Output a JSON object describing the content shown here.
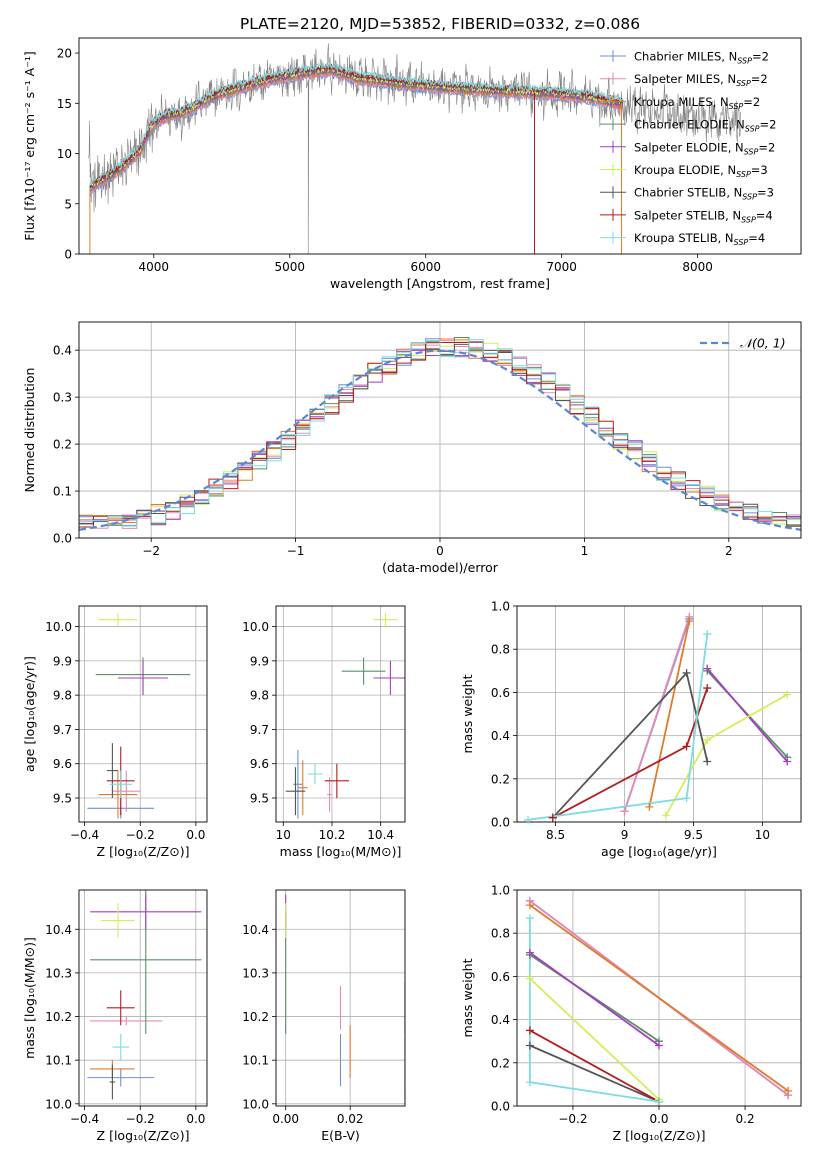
{
  "figure_title": "PLATE=2120, MJD=53852, FIBERID=0332, z=0.086",
  "series_styles": [
    {
      "key": "chab_miles",
      "color": "#6f8fd6"
    },
    {
      "key": "salp_miles",
      "color": "#e68ab8"
    },
    {
      "key": "krou_miles",
      "color": "#e07b2c"
    },
    {
      "key": "chab_elodie",
      "color": "#5a8f6a"
    },
    {
      "key": "salp_elodie",
      "color": "#a43fbf"
    },
    {
      "key": "krou_elodie",
      "color": "#d7ec5a"
    },
    {
      "key": "chab_stelib",
      "color": "#555555"
    },
    {
      "key": "salp_stelib",
      "color": "#b21c1c"
    },
    {
      "key": "krou_stelib",
      "color": "#7fdbe0"
    }
  ],
  "data_color": "#808080",
  "chart_data": [
    {
      "id": "spectrum",
      "type": "line",
      "xlabel": "wavelength [Angstrom, rest frame]",
      "ylabel": "Flux [fλ10⁻¹⁷ erg cm⁻² s⁻¹ A⁻¹]",
      "xlim": [
        3450,
        8760
      ],
      "ylim": [
        0,
        21.5
      ],
      "xticks": [
        4000,
        5000,
        6000,
        7000,
        8000
      ],
      "yticks": [
        0,
        5,
        10,
        15,
        20
      ],
      "grid": false,
      "legend": "top-right",
      "legend_entries": [
        {
          "key": "chab_miles",
          "label": "Chabrier MILES, N",
          "sub": "SSP",
          "suffix": "=2"
        },
        {
          "key": "salp_miles",
          "label": "Salpeter MILES, N",
          "sub": "SSP",
          "suffix": "=2"
        },
        {
          "key": "krou_miles",
          "label": "Kroupa MILES, N",
          "sub": "SSP",
          "suffix": "=2"
        },
        {
          "key": "chab_elodie",
          "label": "Chabrier ELODIE, N",
          "sub": "SSP",
          "suffix": "=2"
        },
        {
          "key": "salp_elodie",
          "label": "Salpeter ELODIE, N",
          "sub": "SSP",
          "suffix": "=2"
        },
        {
          "key": "krou_elodie",
          "label": "Kroupa ELODIE, N",
          "sub": "SSP",
          "suffix": "=3"
        },
        {
          "key": "chab_stelib",
          "label": "Chabrier STELIB, N",
          "sub": "SSP",
          "suffix": "=3"
        },
        {
          "key": "salp_stelib",
          "label": "Salpeter STELIB, N",
          "sub": "SSP",
          "suffix": "=4"
        },
        {
          "key": "krou_stelib",
          "label": "Kroupa STELIB, N",
          "sub": "SSP",
          "suffix": "=4"
        }
      ],
      "continuum": [
        [
          3530,
          6.5
        ],
        [
          3600,
          7.2
        ],
        [
          3700,
          8.0
        ],
        [
          3800,
          9.0
        ],
        [
          3900,
          10.3
        ],
        [
          3960,
          12.0
        ],
        [
          4000,
          13.0
        ],
        [
          4100,
          13.8
        ],
        [
          4200,
          14.0
        ],
        [
          4300,
          14.6
        ],
        [
          4400,
          15.4
        ],
        [
          4500,
          16.0
        ],
        [
          4700,
          16.8
        ],
        [
          4900,
          17.5
        ],
        [
          5100,
          18.0
        ],
        [
          5300,
          18.3
        ],
        [
          5500,
          17.5
        ],
        [
          5800,
          17.0
        ],
        [
          6000,
          16.7
        ],
        [
          6300,
          16.4
        ],
        [
          6600,
          16.2
        ],
        [
          6900,
          16.0
        ],
        [
          7200,
          15.6
        ],
        [
          7400,
          15.0
        ],
        [
          7600,
          14.6
        ],
        [
          7800,
          14.3
        ],
        [
          8000,
          13.6
        ],
        [
          8200,
          13.3
        ],
        [
          8300,
          13.1
        ]
      ],
      "model_range": [
        3530,
        7450
      ],
      "data_range": [
        3520,
        8320
      ],
      "model_drop_edges": {
        "krou_miles": [
          [
            3530,
            0
          ],
          [
            7440,
            0
          ]
        ],
        "salp_stelib": [
          [
            6800,
            0
          ]
        ]
      },
      "data_spikes": [
        [
          5135,
          0
        ],
        [
          3860,
          0.5
        ],
        [
          3895,
          1.5
        ]
      ]
    },
    {
      "id": "residuals",
      "type": "step",
      "xlabel": "(data-model)/error",
      "ylabel": "Normed distribution",
      "xlim": [
        -2.5,
        2.5
      ],
      "ylim": [
        0,
        0.46
      ],
      "xticks": [
        -2,
        -1,
        0,
        1,
        2
      ],
      "xtick_labels": [
        "−2",
        "−1",
        "0",
        "1",
        "2"
      ],
      "yticks": [
        0.0,
        0.1,
        0.2,
        0.3,
        0.4
      ],
      "grid": true,
      "legend": "top-right",
      "reference_curve": {
        "label": "𝒩(0, 1)",
        "mean": 0,
        "sigma": 1,
        "color": "#5b86d6"
      },
      "bin_width": 0.1
    },
    {
      "id": "age_vs_Z",
      "type": "errorbar",
      "xlabel": "Z [log₁₀(Z/Z⊙)]",
      "ylabel": "age  [log₁₀(age/yr)]",
      "xlim": [
        -0.42,
        0.04
      ],
      "ylim": [
        9.43,
        10.06
      ],
      "xticks": [
        -0.4,
        -0.2,
        0.0
      ],
      "xtick_labels": [
        "−0.4",
        "−0.2",
        "0.0"
      ],
      "yticks": [
        9.5,
        9.6,
        9.7,
        9.8,
        9.9,
        10.0
      ],
      "grid": true,
      "points": [
        {
          "key": "chab_miles",
          "x": -0.27,
          "y": 9.47,
          "xerr": 0.12,
          "yerr": 0.03
        },
        {
          "key": "salp_miles",
          "x": -0.25,
          "y": 9.52,
          "xerr": 0.05,
          "yerr": 0.06
        },
        {
          "key": "krou_miles",
          "x": -0.28,
          "y": 9.51,
          "xerr": 0.07,
          "yerr": 0.07
        },
        {
          "key": "chab_elodie",
          "x": -0.19,
          "y": 9.86,
          "xerr": 0.17,
          "yerr": 0.05
        },
        {
          "key": "salp_elodie",
          "x": -0.19,
          "y": 9.85,
          "xerr": 0.09,
          "yerr": 0.05
        },
        {
          "key": "krou_elodie",
          "x": -0.28,
          "y": 10.02,
          "xerr": 0.07,
          "yerr": 0.02
        },
        {
          "key": "chab_stelib",
          "x": -0.3,
          "y": 9.58,
          "xerr": 0.02,
          "yerr": 0.08
        },
        {
          "key": "salp_stelib",
          "x": -0.27,
          "y": 9.55,
          "xerr": 0.05,
          "yerr": 0.1
        },
        {
          "key": "krou_stelib",
          "x": -0.27,
          "y": 9.54,
          "xerr": 0.04,
          "yerr": 0.04
        }
      ]
    },
    {
      "id": "age_vs_mass",
      "type": "errorbar",
      "xlabel": "mass [log₁₀(M/M⊙)]",
      "ylabel": "",
      "xlim": [
        9.97,
        10.5
      ],
      "ylim": [
        9.43,
        10.06
      ],
      "xticks": [
        10.0,
        10.2,
        10.4
      ],
      "yticks": [
        9.5,
        9.6,
        9.7,
        9.8,
        9.9,
        10.0
      ],
      "grid": true,
      "points": [
        {
          "key": "chab_miles",
          "x": 10.06,
          "y": 9.54,
          "xerr": 0.02,
          "yerr": 0.1
        },
        {
          "key": "salp_miles",
          "x": 10.19,
          "y": 9.51,
          "xerr": 0.01,
          "yerr": 0.05
        },
        {
          "key": "krou_miles",
          "x": 10.08,
          "y": 9.53,
          "xerr": 0.02,
          "yerr": 0.08
        },
        {
          "key": "chab_elodie",
          "x": 10.33,
          "y": 9.87,
          "xerr": 0.09,
          "yerr": 0.04
        },
        {
          "key": "salp_elodie",
          "x": 10.44,
          "y": 9.85,
          "xerr": 0.07,
          "yerr": 0.05
        },
        {
          "key": "krou_elodie",
          "x": 10.42,
          "y": 10.02,
          "xerr": 0.05,
          "yerr": 0.02
        },
        {
          "key": "chab_stelib",
          "x": 10.05,
          "y": 9.52,
          "xerr": 0.04,
          "yerr": 0.07
        },
        {
          "key": "salp_stelib",
          "x": 10.22,
          "y": 9.55,
          "xerr": 0.05,
          "yerr": 0.05
        },
        {
          "key": "krou_stelib",
          "x": 10.13,
          "y": 9.57,
          "xerr": 0.03,
          "yerr": 0.03
        }
      ]
    },
    {
      "id": "massweight_vs_age",
      "type": "line",
      "xlabel": "age  [log₁₀(age/yr)]",
      "ylabel": "mass weight",
      "xlim": [
        8.22,
        10.28
      ],
      "ylim": [
        0,
        1
      ],
      "xticks": [
        8.5,
        9.0,
        9.5,
        10.0
      ],
      "yticks": [
        0.0,
        0.2,
        0.4,
        0.6,
        0.8,
        1.0
      ],
      "grid": true,
      "series": [
        {
          "key": "chab_miles",
          "x": [
            9.0,
            9.47
          ],
          "y": [
            0.05,
            0.94
          ]
        },
        {
          "key": "salp_miles",
          "x": [
            9.0,
            9.47
          ],
          "y": [
            0.05,
            0.95
          ]
        },
        {
          "key": "krou_miles",
          "x": [
            9.18,
            9.47
          ],
          "y": [
            0.07,
            0.93
          ]
        },
        {
          "key": "chab_elodie",
          "x": [
            9.6,
            10.18
          ],
          "y": [
            0.7,
            0.3
          ]
        },
        {
          "key": "salp_elodie",
          "x": [
            9.6,
            10.18
          ],
          "y": [
            0.71,
            0.28
          ]
        },
        {
          "key": "krou_elodie",
          "x": [
            9.3,
            9.6,
            10.18
          ],
          "y": [
            0.03,
            0.38,
            0.59
          ]
        },
        {
          "key": "chab_stelib",
          "x": [
            8.48,
            9.45,
            9.6
          ],
          "y": [
            0.02,
            0.69,
            0.28
          ]
        },
        {
          "key": "salp_stelib",
          "x": [
            8.48,
            9.45,
            9.6
          ],
          "y": [
            0.02,
            0.35,
            0.62
          ]
        },
        {
          "key": "krou_stelib",
          "x": [
            8.3,
            9.45,
            9.6
          ],
          "y": [
            0.01,
            0.11,
            0.87
          ]
        }
      ]
    },
    {
      "id": "mass_vs_Z",
      "type": "errorbar",
      "xlabel": "Z [log₁₀(Z/Z⊙)]",
      "ylabel": "mass [log₁₀(M/M⊙)]",
      "xlim": [
        -0.42,
        0.04
      ],
      "ylim": [
        9.995,
        10.49
      ],
      "xticks": [
        -0.4,
        -0.2,
        0.0
      ],
      "xtick_labels": [
        "−0.4",
        "−0.2",
        "0.0"
      ],
      "yticks": [
        10.0,
        10.1,
        10.2,
        10.3,
        10.4
      ],
      "grid": true,
      "points": [
        {
          "key": "chab_miles",
          "x": -0.27,
          "y": 10.06,
          "xerr": 0.12,
          "yerr": 0.02
        },
        {
          "key": "salp_miles",
          "x": -0.25,
          "y": 10.19,
          "xerr": 0.13,
          "yerr": 0.01
        },
        {
          "key": "krou_miles",
          "x": -0.3,
          "y": 10.08,
          "xerr": 0.08,
          "yerr": 0.02
        },
        {
          "key": "chab_elodie",
          "x": -0.18,
          "y": 10.33,
          "xerr": 0.2,
          "yerr": 0.17
        },
        {
          "key": "salp_elodie",
          "x": -0.18,
          "y": 10.44,
          "xerr": 0.2,
          "yerr": 0.04
        },
        {
          "key": "krou_elodie",
          "x": -0.28,
          "y": 10.42,
          "xerr": 0.06,
          "yerr": 0.04
        },
        {
          "key": "chab_stelib",
          "x": -0.3,
          "y": 10.05,
          "xerr": 0.01,
          "yerr": 0.04
        },
        {
          "key": "salp_stelib",
          "x": -0.27,
          "y": 10.22,
          "xerr": 0.05,
          "yerr": 0.04
        },
        {
          "key": "krou_stelib",
          "x": -0.27,
          "y": 10.13,
          "xerr": 0.03,
          "yerr": 0.03
        }
      ]
    },
    {
      "id": "mass_vs_ebv",
      "type": "errorbar",
      "xlabel": "E(B-V)",
      "ylabel": "",
      "xlim": [
        -0.003,
        0.037
      ],
      "ylim": [
        9.995,
        10.49
      ],
      "xticks": [
        0.0,
        0.02
      ],
      "xtick_labels": [
        "0.00",
        "0.02"
      ],
      "yticks": [
        10.0,
        10.1,
        10.2,
        10.3,
        10.4
      ],
      "grid": true,
      "points": [
        {
          "key": "chab_miles",
          "x": 0.017,
          "y": 10.1,
          "xerr": 0,
          "yerr": 0.06
        },
        {
          "key": "salp_miles",
          "x": 0.017,
          "y": 10.22,
          "xerr": 0,
          "yerr": 0.05
        },
        {
          "key": "krou_miles",
          "x": 0.02,
          "y": 10.12,
          "xerr": 0,
          "yerr": 0.06
        },
        {
          "key": "chab_elodie",
          "x": 0.0,
          "y": 10.3,
          "xerr": 0,
          "yerr": 0.14
        },
        {
          "key": "salp_elodie",
          "x": 0.0,
          "y": 10.44,
          "xerr": 0,
          "yerr": 0.04
        },
        {
          "key": "krou_elodie",
          "x": 0.0,
          "y": 10.42,
          "xerr": 0,
          "yerr": 0.04
        },
        {
          "key": "chab_stelib",
          "x": 0.037,
          "y": 10.08,
          "xerr": 0,
          "yerr": 0.07
        },
        {
          "key": "salp_stelib",
          "x": 0.037,
          "y": 10.22,
          "xerr": 0,
          "yerr": 0.06
        },
        {
          "key": "krou_stelib",
          "x": 0.037,
          "y": 10.1,
          "xerr": 0,
          "yerr": 0.06
        }
      ]
    },
    {
      "id": "massweight_vs_Z",
      "type": "line",
      "xlabel": "Z [log₁₀(Z/Z⊙)]",
      "ylabel": "mass weight",
      "xlim": [
        -0.33,
        0.33
      ],
      "ylim": [
        0,
        1
      ],
      "xticks": [
        -0.2,
        0.0,
        0.2
      ],
      "xtick_labels": [
        "−0.2",
        "0.0",
        "0.2"
      ],
      "yticks": [
        0.0,
        0.2,
        0.4,
        0.6,
        0.8,
        1.0
      ],
      "grid": true,
      "series": [
        {
          "key": "chab_miles",
          "x": [
            -0.3,
            0.3
          ],
          "y": [
            0.95,
            0.05
          ]
        },
        {
          "key": "salp_miles",
          "x": [
            -0.3,
            0.3
          ],
          "y": [
            0.95,
            0.05
          ]
        },
        {
          "key": "krou_miles",
          "x": [
            -0.3,
            0.3
          ],
          "y": [
            0.93,
            0.07
          ]
        },
        {
          "key": "chab_elodie",
          "x": [
            -0.3,
            0.0
          ],
          "y": [
            0.7,
            0.3
          ]
        },
        {
          "key": "salp_elodie",
          "x": [
            -0.3,
            0.0
          ],
          "y": [
            0.71,
            0.28
          ]
        },
        {
          "key": "krou_elodie",
          "x": [
            -0.3,
            0.0
          ],
          "y": [
            0.59,
            0.03
          ]
        },
        {
          "key": "chab_stelib",
          "x": [
            -0.3,
            0.0
          ],
          "y": [
            0.28,
            0.02
          ]
        },
        {
          "key": "salp_stelib",
          "x": [
            -0.3,
            0.0
          ],
          "y": [
            0.35,
            0.02
          ]
        },
        {
          "key": "krou_stelib",
          "x": [
            -0.3,
            -0.3,
            0.0
          ],
          "y": [
            0.87,
            0.11,
            0.02
          ]
        }
      ]
    }
  ]
}
